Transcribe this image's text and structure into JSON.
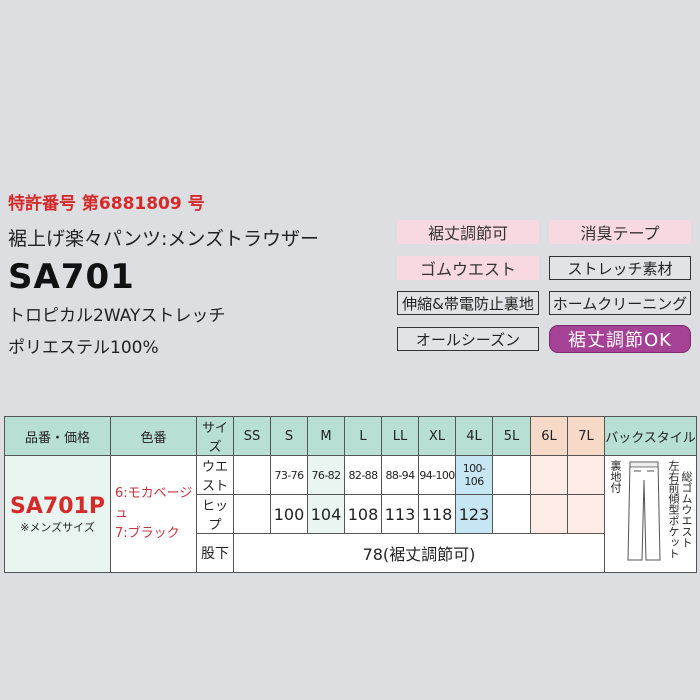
{
  "header": {
    "patent": "特許番号 第6881809 号",
    "product_name": "裾上げ楽々パンツ:メンズトラウザー",
    "code": "SA701",
    "fabric": "トロピカル2WAYストレッチ",
    "material": "ポリエステル100%"
  },
  "tags": [
    "裾丈調節可",
    "消臭テープ",
    "ゴムウエスト",
    "ストレッチ素材",
    "伸縮&帯電防止裏地",
    "ホームクリーニング",
    "オールシーズン",
    "裾丈調節OK"
  ],
  "table": {
    "headers": {
      "item": "品番・価格",
      "color": "色番",
      "size": "サイズ",
      "back": "バックスタイル"
    },
    "sizes": [
      "SS",
      "S",
      "M",
      "L",
      "LL",
      "XL",
      "4L",
      "5L",
      "6L",
      "7L"
    ],
    "item_code": "SA701P",
    "item_note": "※メンズサイズ",
    "colors": [
      "6:モカベージュ",
      "7:ブラック"
    ],
    "rows": [
      {
        "label": "ウエスト",
        "values": [
          "",
          "73-76",
          "76-82",
          "82-88",
          "88-94",
          "94-100",
          "100-106",
          "",
          "",
          ""
        ]
      },
      {
        "label": "ヒップ",
        "values": [
          "",
          "100",
          "104",
          "108",
          "113",
          "118",
          "123",
          "",
          "",
          ""
        ]
      }
    ],
    "inseam_label": "股下",
    "inseam_value": "78(裾丈調節可)",
    "back_notes": [
      "裏地付",
      "総ゴムウエスト",
      "左右前傾型ポケット"
    ]
  },
  "colors": {
    "accent_red": "#d42a2a",
    "tag_pink": "#f8d9e2",
    "ok_purple": "#a64295",
    "header_mint": "#b8dfd4"
  }
}
